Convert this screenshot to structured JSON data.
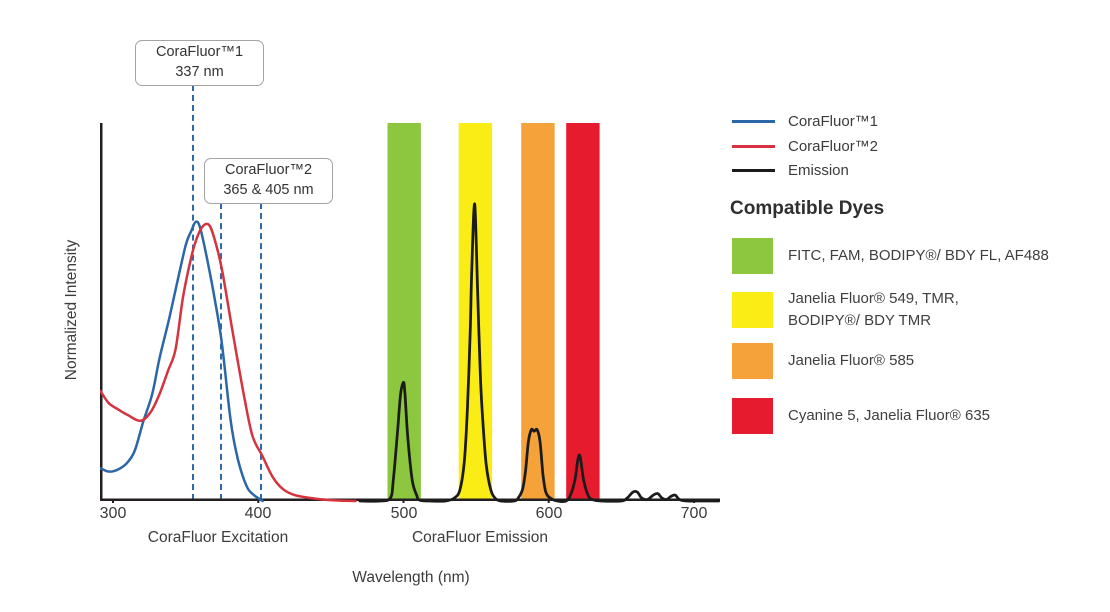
{
  "chart": {
    "y_axis_label": "Normalized Intensity",
    "x_axis_label": "Wavelength (nm)",
    "x_ticks": [
      "300",
      "400",
      "500",
      "600",
      "700"
    ],
    "section_labels": {
      "excitation": "CoraFluor Excitation",
      "emission": "CoraFluor Emission"
    },
    "annotations": [
      {
        "line1": "CoraFluor™1",
        "line2": "337 nm"
      },
      {
        "line1": "CoraFluor™2",
        "line2": "365 & 405 nm"
      }
    ]
  },
  "legend": {
    "items": [
      {
        "key": "corafluor1",
        "label": "CoraFluor™1",
        "color": "#2b66a7"
      },
      {
        "key": "corafluor2",
        "label": "CoraFluor™2",
        "color": "#d5333e"
      },
      {
        "key": "emission",
        "label": "Emission",
        "color": "#1b1b1b"
      }
    ]
  },
  "dye_panel": {
    "heading": "Compatible Dyes",
    "items": [
      {
        "key": "fitc",
        "color": "#8dc63f",
        "line1": "FITC, FAM, BODIPY®/ BDY FL, AF488",
        "line2": ""
      },
      {
        "key": "jf549",
        "color": "#f9ed15",
        "line1": "Janelia Fluor® 549, TMR,",
        "line2": "BODIPY®/ BDY TMR"
      },
      {
        "key": "jf585",
        "color": "#f5a23b",
        "line1": "Janelia Fluor® 585",
        "line2": ""
      },
      {
        "key": "cy5",
        "color": "#e61b2e",
        "line1": "Cyanine 5, Janelia Fluor® 635",
        "line2": ""
      }
    ]
  },
  "chart_data": {
    "type": "line",
    "title": "",
    "xlabel": "Wavelength (nm)",
    "ylabel": "Normalized Intensity",
    "xlim": [
      291,
      718
    ],
    "ylim": [
      0,
      1.05
    ],
    "grid": false,
    "legend_position": "right-top",
    "x_tick_values": [
      300,
      400,
      500,
      600,
      700
    ],
    "axis_color": "#231f20",
    "annotations": [
      {
        "text": "CoraFluor™1 337 nm",
        "marker_nm": [
          337
        ]
      },
      {
        "text": "CoraFluor™2 365 & 405 nm",
        "marker_nm": [
          365,
          405
        ]
      }
    ],
    "marker_line_color": "#2d6ba8",
    "bands": [
      {
        "key": "fitc-band",
        "label": "FITC, FAM, BODIPY®/ BDY FL, AF488",
        "color": "#8dc63f",
        "nm_range": [
          489,
          512
        ]
      },
      {
        "key": "jf549-band",
        "label": "Janelia Fluor® 549, TMR, BODIPY®/ BDY TMR",
        "color": "#f9ed15",
        "nm_range": [
          538,
          561
        ]
      },
      {
        "key": "jf585-band",
        "label": "Janelia Fluor® 585",
        "color": "#f5a23b",
        "nm_range": [
          581,
          604
        ]
      },
      {
        "key": "cy5-band",
        "label": "Cyanine 5, Janelia Fluor® 635",
        "color": "#e61b2e",
        "nm_range": [
          612,
          635
        ]
      }
    ],
    "series": [
      {
        "key": "corafluor1-excitation",
        "name": "CoraFluor™1",
        "color": "#2b66a7",
        "width": 2.5,
        "points": [
          [
            291,
            0.11
          ],
          [
            296,
            0.1
          ],
          [
            300,
            0.1
          ],
          [
            305,
            0.11
          ],
          [
            310,
            0.13
          ],
          [
            315,
            0.17
          ],
          [
            321,
            0.27
          ],
          [
            327,
            0.36
          ],
          [
            332,
            0.48
          ],
          [
            338,
            0.6
          ],
          [
            343,
            0.71
          ],
          [
            350,
            0.86
          ],
          [
            354,
            0.91
          ],
          [
            357,
            0.94
          ],
          [
            360,
            0.92
          ],
          [
            365,
            0.81
          ],
          [
            370,
            0.68
          ],
          [
            375,
            0.53
          ],
          [
            381,
            0.27
          ],
          [
            386,
            0.14
          ],
          [
            392,
            0.05
          ],
          [
            397,
            0.02
          ],
          [
            403,
            0.0
          ]
        ]
      },
      {
        "key": "corafluor2-excitation",
        "name": "CoraFluor™2",
        "color": "#d5333e",
        "width": 2.5,
        "points": [
          [
            291,
            0.37
          ],
          [
            297,
            0.33
          ],
          [
            303,
            0.31
          ],
          [
            310,
            0.29
          ],
          [
            319,
            0.27
          ],
          [
            326,
            0.3
          ],
          [
            332,
            0.36
          ],
          [
            338,
            0.44
          ],
          [
            343,
            0.51
          ],
          [
            348,
            0.68
          ],
          [
            352,
            0.78
          ],
          [
            356,
            0.86
          ],
          [
            361,
            0.92
          ],
          [
            366,
            0.93
          ],
          [
            370,
            0.88
          ],
          [
            375,
            0.78
          ],
          [
            382,
            0.58
          ],
          [
            390,
            0.36
          ],
          [
            396,
            0.22
          ],
          [
            403,
            0.15
          ],
          [
            410,
            0.08
          ],
          [
            417,
            0.04
          ],
          [
            425,
            0.02
          ],
          [
            436,
            0.01
          ],
          [
            450,
            0.003
          ],
          [
            467,
            0.0
          ]
        ]
      },
      {
        "key": "emission",
        "name": "Emission",
        "color": "#1b1b1b",
        "width": 2.75,
        "points": [
          [
            470,
            0
          ],
          [
            484,
            0
          ],
          [
            491,
            0.01
          ],
          [
            493,
            0.07
          ],
          [
            496,
            0.24
          ],
          [
            498,
            0.36
          ],
          [
            500,
            0.4
          ],
          [
            501,
            0.36
          ],
          [
            503,
            0.21
          ],
          [
            506,
            0.07
          ],
          [
            509,
            0.02
          ],
          [
            511,
            0.003
          ],
          [
            518,
            0
          ],
          [
            529,
            0
          ],
          [
            535,
            0.01
          ],
          [
            539,
            0.04
          ],
          [
            542,
            0.14
          ],
          [
            544,
            0.31
          ],
          [
            546,
            0.58
          ],
          [
            547,
            0.78
          ],
          [
            549,
            1.0
          ],
          [
            551,
            0.71
          ],
          [
            553,
            0.41
          ],
          [
            555,
            0.24
          ],
          [
            557,
            0.12
          ],
          [
            560,
            0.04
          ],
          [
            563,
            0.01
          ],
          [
            567,
            0
          ],
          [
            576,
            0
          ],
          [
            579,
            0.01
          ],
          [
            582,
            0.04
          ],
          [
            584,
            0.1
          ],
          [
            586,
            0.2
          ],
          [
            588,
            0.24
          ],
          [
            590,
            0.235
          ],
          [
            592,
            0.24
          ],
          [
            594,
            0.2
          ],
          [
            596,
            0.09
          ],
          [
            598,
            0.03
          ],
          [
            601,
            0.01
          ],
          [
            606,
            0
          ],
          [
            612,
            0
          ],
          [
            615,
            0.02
          ],
          [
            618,
            0.07
          ],
          [
            621,
            0.155
          ],
          [
            624,
            0.07
          ],
          [
            627,
            0.02
          ],
          [
            630,
            0.005
          ],
          [
            636,
            0
          ],
          [
            650,
            0
          ],
          [
            654,
            0.01
          ],
          [
            658,
            0.03
          ],
          [
            661,
            0.03
          ],
          [
            664,
            0.01
          ],
          [
            668,
            0.005
          ],
          [
            672,
            0.02
          ],
          [
            675,
            0.025
          ],
          [
            678,
            0.01
          ],
          [
            681,
            0.005
          ],
          [
            684,
            0.015
          ],
          [
            687,
            0.02
          ],
          [
            690,
            0.005
          ],
          [
            695,
            0
          ],
          [
            705,
            0
          ],
          [
            717,
            0
          ]
        ]
      }
    ]
  }
}
